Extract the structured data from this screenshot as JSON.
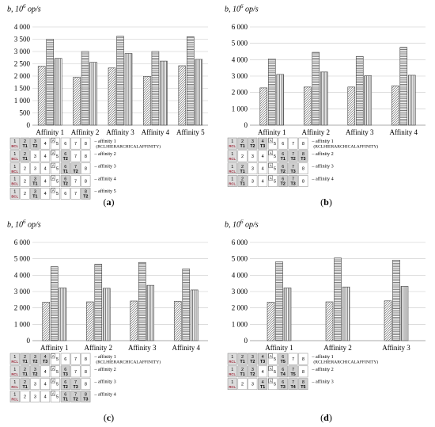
{
  "legend_prefix": "–",
  "chart_data": [
    {
      "type": "bar",
      "panel_label": "a",
      "ylabel_var": "b",
      "ylabel_unit": "10",
      "ylabel_exp": "6",
      "ylabel_suffix": " op/s",
      "ylim": [
        0,
        4000
      ],
      "yticks": [
        "0",
        "500",
        "1 000",
        "1 500",
        "2 000",
        "2 500",
        "3 000",
        "3 500",
        "4 000"
      ],
      "categories": [
        "Affinity 1",
        "Affinity 2",
        "Affinity 3",
        "Affinity 4",
        "Affinity 5"
      ],
      "series": [
        {
          "values": [
            2400,
            1950,
            2330,
            1990,
            2420
          ],
          "pattern": "diag",
          "color": "#555555"
        },
        {
          "values": [
            3500,
            3000,
            3620,
            3000,
            3600
          ],
          "pattern": "horiz",
          "color": "#555555"
        },
        {
          "values": [
            2720,
            2560,
            2920,
            2610,
            2680
          ],
          "pattern": "vert",
          "color": "#555555"
        }
      ],
      "grid": true,
      "legend": [
        {
          "label": "affinity 1",
          "note": "(RCLHIERARCHICALAFFINITY)",
          "cells": [
            [
              "1",
              "BCL"
            ],
            [
              "2",
              "T1"
            ],
            [
              "3",
              "T2"
            ],
            [
              "4",
              ""
            ],
            [
              "5",
              "A"
            ],
            [
              "6",
              ""
            ],
            [
              "7",
              ""
            ],
            [
              "8",
              ""
            ]
          ]
        },
        {
          "label": "affinity 2",
          "cells": [
            [
              "1",
              "BCL"
            ],
            [
              "2",
              "T1"
            ],
            [
              "3",
              ""
            ],
            [
              "4",
              ""
            ],
            [
              "5",
              "A"
            ],
            [
              "6",
              "T2"
            ],
            [
              "7",
              ""
            ],
            [
              "8",
              ""
            ]
          ]
        },
        {
          "label": "affinity 3",
          "cells": [
            [
              "1",
              "BCL"
            ],
            [
              "2",
              ""
            ],
            [
              "3",
              ""
            ],
            [
              "4",
              ""
            ],
            [
              "5",
              "A"
            ],
            [
              "6",
              "T1"
            ],
            [
              "7",
              "T2"
            ],
            [
              "8",
              ""
            ]
          ]
        },
        {
          "label": "affinity 4",
          "cells": [
            [
              "1",
              "BCL"
            ],
            [
              "2",
              ""
            ],
            [
              "3",
              "T1"
            ],
            [
              "4",
              ""
            ],
            [
              "5",
              "A"
            ],
            [
              "6",
              "T2"
            ],
            [
              "7",
              ""
            ],
            [
              "8",
              ""
            ]
          ]
        },
        {
          "label": "affinity 5",
          "cells": [
            [
              "1",
              "BCL"
            ],
            [
              "2",
              ""
            ],
            [
              "3",
              "T1"
            ],
            [
              "4",
              ""
            ],
            [
              "5",
              "A"
            ],
            [
              "6",
              ""
            ],
            [
              "7",
              ""
            ],
            [
              "8",
              "T2"
            ]
          ]
        }
      ]
    },
    {
      "type": "bar",
      "panel_label": "b",
      "ylabel_var": "b",
      "ylabel_unit": "10",
      "ylabel_exp": "6",
      "ylabel_suffix": " op/s",
      "ylim": [
        0,
        6000
      ],
      "yticks": [
        "0",
        "1 000",
        "2 000",
        "3 000",
        "4 000",
        "5 000",
        "6 000"
      ],
      "categories": [
        "Affinity 1",
        "Affinity 2",
        "Affinity 3",
        "Affinity 4"
      ],
      "series": [
        {
          "values": [
            2280,
            2330,
            2330,
            2400
          ],
          "pattern": "diag",
          "color": "#555555"
        },
        {
          "values": [
            4050,
            4450,
            4200,
            4750
          ],
          "pattern": "horiz",
          "color": "#555555"
        },
        {
          "values": [
            3100,
            3250,
            3020,
            3050
          ],
          "pattern": "vert",
          "color": "#555555"
        }
      ],
      "grid": true,
      "legend": [
        {
          "label": "affinity 1",
          "note": "(RCLHIERARCHICALAFFINITY)",
          "cells": [
            [
              "1",
              "RCL"
            ],
            [
              "2",
              "T1"
            ],
            [
              "3",
              "T2"
            ],
            [
              "4",
              "T3"
            ],
            [
              "5",
              "A"
            ],
            [
              "6",
              ""
            ],
            [
              "7",
              ""
            ],
            [
              "8",
              ""
            ]
          ]
        },
        {
          "label": "affinity 2",
          "cells": [
            [
              "1",
              "RCL"
            ],
            [
              "2",
              ""
            ],
            [
              "3",
              ""
            ],
            [
              "4",
              ""
            ],
            [
              "5",
              "A"
            ],
            [
              "6",
              "T1"
            ],
            [
              "7",
              "T2"
            ],
            [
              "8",
              "T3"
            ]
          ]
        },
        {
          "label": "affinity 3",
          "cells": [
            [
              "1",
              "RCL"
            ],
            [
              "2",
              "T1"
            ],
            [
              "3",
              ""
            ],
            [
              "4",
              ""
            ],
            [
              "5",
              "A"
            ],
            [
              "6",
              "T2"
            ],
            [
              "7",
              "T3"
            ],
            [
              "8",
              ""
            ]
          ]
        },
        {
          "label": "affinity 4",
          "cells": [
            [
              "1",
              "RCL"
            ],
            [
              "2",
              "T1"
            ],
            [
              "3",
              ""
            ],
            [
              "4",
              ""
            ],
            [
              "5",
              "A"
            ],
            [
              "6",
              "T2"
            ],
            [
              "7",
              "T3"
            ],
            [
              "8",
              ""
            ]
          ]
        }
      ]
    },
    {
      "type": "bar",
      "panel_label": "c",
      "ylabel_var": "b",
      "ylabel_unit": "10",
      "ylabel_exp": "6",
      "ylabel_suffix": " op/s",
      "ylim": [
        0,
        6000
      ],
      "yticks": [
        "0",
        "1 000",
        "2 000",
        "3 000",
        "4 000",
        "5 000",
        "6 000"
      ],
      "categories": [
        "Affinity 1",
        "Affinity 2",
        "Affinity 3",
        "Affinity 4"
      ],
      "series": [
        {
          "values": [
            2350,
            2370,
            2420,
            2400
          ],
          "pattern": "diag",
          "color": "#555555"
        },
        {
          "values": [
            4520,
            4670,
            4780,
            4380
          ],
          "pattern": "horiz",
          "color": "#555555"
        },
        {
          "values": [
            3220,
            3200,
            3380,
            3100
          ],
          "pattern": "vert",
          "color": "#555555"
        }
      ],
      "grid": true,
      "legend": [
        {
          "label": "affinity 1",
          "note": "(RCLHIERARCHICALAFFINITY)",
          "cells": [
            [
              "1",
              "RCL"
            ],
            [
              "2",
              "T1"
            ],
            [
              "3",
              "T2"
            ],
            [
              "4",
              "T3"
            ],
            [
              "5",
              "A"
            ],
            [
              "6",
              ""
            ],
            [
              "7",
              ""
            ],
            [
              "8",
              ""
            ]
          ]
        },
        {
          "label": "affinity 2",
          "cells": [
            [
              "1",
              "RCL"
            ],
            [
              "2",
              "T1"
            ],
            [
              "3",
              "T2"
            ],
            [
              "4",
              ""
            ],
            [
              "5",
              "A"
            ],
            [
              "6",
              "T3"
            ],
            [
              "7",
              ""
            ],
            [
              "8",
              ""
            ]
          ]
        },
        {
          "label": "affinity 3",
          "cells": [
            [
              "1",
              "RCL"
            ],
            [
              "2",
              "T1"
            ],
            [
              "3",
              ""
            ],
            [
              "4",
              ""
            ],
            [
              "5",
              "A"
            ],
            [
              "6",
              "T2"
            ],
            [
              "7",
              "T3"
            ],
            [
              "8",
              ""
            ]
          ]
        },
        {
          "label": "affinity 4",
          "cells": [
            [
              "1",
              "RCL"
            ],
            [
              "2",
              ""
            ],
            [
              "3",
              ""
            ],
            [
              "4",
              ""
            ],
            [
              "5",
              "A"
            ],
            [
              "6",
              "T1"
            ],
            [
              "7",
              "T2"
            ],
            [
              "8",
              "T3"
            ]
          ]
        }
      ]
    },
    {
      "type": "bar",
      "panel_label": "d",
      "ylabel_var": "b",
      "ylabel_unit": "10",
      "ylabel_exp": "6",
      "ylabel_suffix": " op/s",
      "ylim": [
        0,
        6000
      ],
      "yticks": [
        "0",
        "1 000",
        "2 000",
        "3 000",
        "4 000",
        "5 000",
        "6 000"
      ],
      "categories": [
        "Affinity 1",
        "Affinity 2",
        "Affinity 3"
      ],
      "series": [
        {
          "values": [
            2350,
            2370,
            2430
          ],
          "pattern": "diag",
          "color": "#555555"
        },
        {
          "values": [
            4820,
            5050,
            4920
          ],
          "pattern": "horiz",
          "color": "#555555"
        },
        {
          "values": [
            3220,
            3280,
            3320
          ],
          "pattern": "vert",
          "color": "#555555"
        }
      ],
      "grid": true,
      "legend": [
        {
          "label": "affinity 1",
          "note": "(RCLHIERARCHICALAFFINITY)",
          "cells": [
            [
              "1",
              "RCL"
            ],
            [
              "2",
              "T1"
            ],
            [
              "3",
              "T2"
            ],
            [
              "4",
              "T3"
            ],
            [
              "5",
              "A"
            ],
            [
              "6",
              "T5"
            ],
            [
              "7",
              ""
            ],
            [
              "8",
              ""
            ]
          ]
        },
        {
          "label": "affinity 2",
          "cells": [
            [
              "1",
              "RCL"
            ],
            [
              "2",
              "T1"
            ],
            [
              "3",
              "T2"
            ],
            [
              "4",
              ""
            ],
            [
              "5",
              "A"
            ],
            [
              "6",
              "T4"
            ],
            [
              "7",
              "T5"
            ],
            [
              "8",
              ""
            ]
          ]
        },
        {
          "label": "affinity 3",
          "cells": [
            [
              "1",
              "RCL"
            ],
            [
              "2",
              ""
            ],
            [
              "3",
              ""
            ],
            [
              "4",
              "T1"
            ],
            [
              "5",
              "A"
            ],
            [
              "6",
              "T3"
            ],
            [
              "7",
              "T4"
            ],
            [
              "8",
              "T5"
            ]
          ]
        }
      ]
    }
  ]
}
